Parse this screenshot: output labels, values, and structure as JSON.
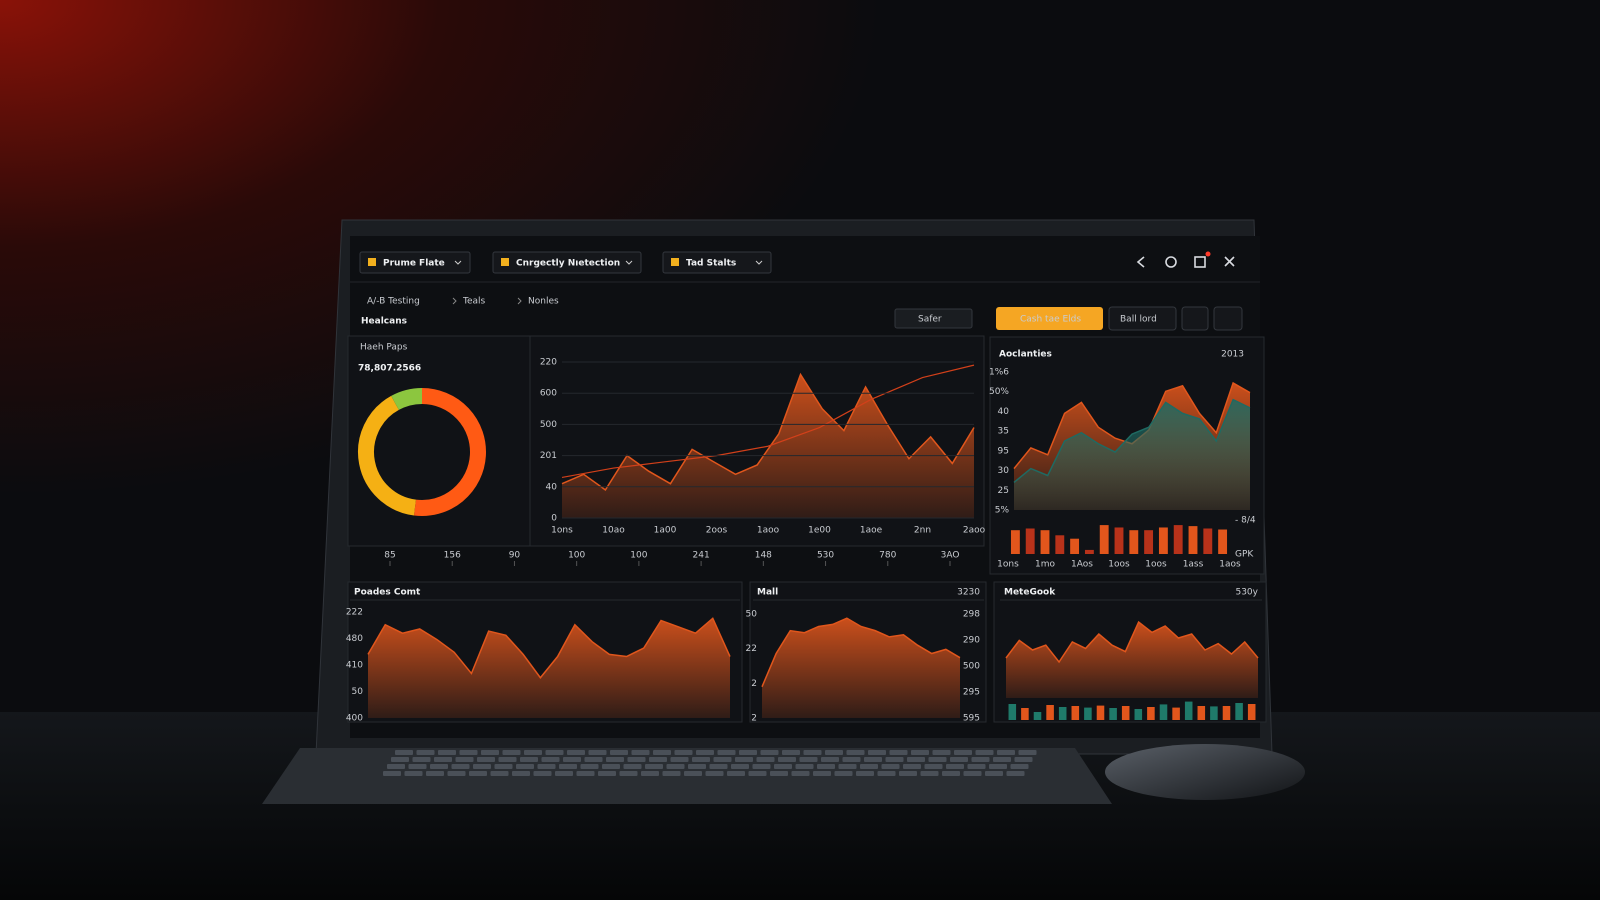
{
  "toolbar": {
    "dropdowns": [
      "Prume Flate",
      "Cnrgectly Nıetection",
      "Tad Stalts"
    ]
  },
  "breadcrumb": [
    "A/-B Testing",
    "Teals",
    "Nonles"
  ],
  "main_panel": {
    "title": "Healcans",
    "filter_button": "Safer",
    "stat_label": "Haeh Paps",
    "stat_value": "78,807.2566",
    "donut": {
      "type": "pie",
      "values": [
        52,
        40,
        8
      ],
      "colors": [
        "#ff5a14",
        "#f5b014",
        "#8cc63f"
      ]
    },
    "area_chart": {
      "type": "area",
      "ylim": [
        0,
        100
      ],
      "y_labels": [
        "220",
        "600",
        "500",
        "201",
        "40",
        "0"
      ],
      "x_labels": [
        "1ons",
        "10ao",
        "1a00",
        "2oos",
        "1aoo",
        "1e00",
        "1aoe",
        "2nn",
        "2aoo"
      ],
      "series": [
        {
          "color": "#e0561c",
          "values": [
            22,
            28,
            18,
            40,
            30,
            22,
            44,
            36,
            28,
            34,
            54,
            92,
            70,
            56,
            84,
            60,
            38,
            52,
            35,
            58
          ]
        },
        {
          "color": "#d2401a",
          "values": [
            26,
            32,
            36,
            40,
            46,
            58,
            76,
            90,
            98
          ]
        }
      ]
    },
    "axis_strip": [
      "85",
      "156",
      "90",
      "100",
      "100",
      "241",
      "148",
      "530",
      "780",
      "3AO"
    ]
  },
  "side_panel": {
    "buttons": [
      "Cash tae Elds",
      "Ball lord"
    ],
    "title": "Aoclanties",
    "year": "2013",
    "area_chart": {
      "type": "area",
      "ylim": [
        0,
        100
      ],
      "y_labels": [
        "1%6",
        "50%",
        "40",
        "35",
        "95",
        "30",
        "25",
        "5%"
      ],
      "series": [
        {
          "color": "#e0561c",
          "values": [
            30,
            45,
            40,
            70,
            78,
            60,
            52,
            48,
            58,
            86,
            90,
            70,
            56,
            92,
            85
          ]
        },
        {
          "color": "#1f6a62",
          "values": [
            20,
            30,
            25,
            50,
            56,
            48,
            42,
            55,
            60,
            78,
            70,
            66,
            50,
            80,
            74
          ]
        }
      ]
    },
    "bar_chart": {
      "type": "bar",
      "ylim": [
        0,
        100
      ],
      "colors": [
        "#e2561c",
        "#b8321a"
      ],
      "values": [
        70,
        75,
        70,
        55,
        45,
        12,
        85,
        78,
        70,
        70,
        78,
        85,
        82,
        75,
        72
      ],
      "x_labels": [
        "1ons",
        "1mo",
        "1Aos",
        "1oos",
        "1oos",
        "1ass",
        "1aos"
      ],
      "right_labels": [
        "- 8/4",
        "GPK"
      ]
    }
  },
  "bottom_panels": [
    {
      "title": "Poades Comt",
      "area_chart": {
        "type": "area",
        "ylim": [
          0,
          100
        ],
        "y_labels": [
          "222",
          "480",
          "410",
          "50",
          "400"
        ],
        "series": [
          {
            "color": "#e0561c",
            "values": [
              60,
              88,
              80,
              84,
              74,
              62,
              42,
              82,
              78,
              60,
              38,
              58,
              88,
              72,
              60,
              58,
              66,
              92,
              86,
              80,
              94,
              58
            ]
          }
        ]
      }
    },
    {
      "title": "Mall",
      "value": "3230",
      "area_chart": {
        "type": "area",
        "ylim": [
          0,
          100
        ],
        "y_labels": [
          "50",
          "22",
          "2",
          "2"
        ],
        "right_labels": [
          "298",
          "290",
          "500",
          "295",
          "595"
        ],
        "series": [
          {
            "color": "#e0561c",
            "values": [
              30,
              62,
              84,
              82,
              88,
              90,
              96,
              88,
              84,
              78,
              80,
              70,
              62,
              66,
              58
            ]
          }
        ]
      }
    },
    {
      "title": "MeteGook",
      "value": "530y",
      "area_chart": {
        "type": "area",
        "ylim": [
          0,
          100
        ],
        "y_labels": [],
        "series": [
          {
            "color": "#e0561c",
            "values": [
              50,
              72,
              60,
              66,
              45,
              70,
              62,
              80,
              66,
              58,
              95,
              82,
              90,
              75,
              80,
              60,
              68,
              55,
              70,
              50
            ]
          }
        ]
      },
      "bar_chart": {
        "type": "bar",
        "ylim": [
          0,
          100
        ],
        "colors": [
          "#1f7a6a",
          "#e2561c"
        ],
        "values": [
          80,
          60,
          40,
          75,
          65,
          70,
          62,
          72,
          60,
          70,
          55,
          65,
          78,
          62,
          92,
          70,
          68,
          70,
          85,
          80
        ]
      }
    }
  ]
}
